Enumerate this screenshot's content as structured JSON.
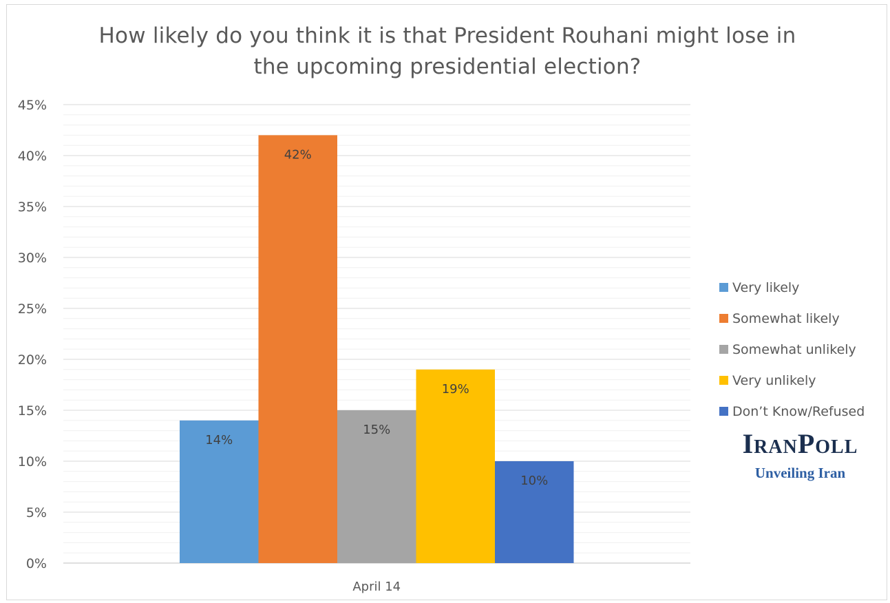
{
  "chart_data": {
    "type": "bar",
    "title_lines": [
      "How likely do you think it is that President Rouhani might lose in",
      "the upcoming presidential election?"
    ],
    "categories": [
      "April 14"
    ],
    "series": [
      {
        "name": "Very likely",
        "values": [
          14
        ],
        "label": "14%",
        "color": "#5b9bd5"
      },
      {
        "name": "Somewhat likely",
        "values": [
          42
        ],
        "label": "42%",
        "color": "#ed7d31"
      },
      {
        "name": "Somewhat unlikely",
        "values": [
          15
        ],
        "label": "15%",
        "color": "#a5a5a5"
      },
      {
        "name": "Very unlikely",
        "values": [
          19
        ],
        "label": "19%",
        "color": "#ffc000"
      },
      {
        "name": "Don’t Know/Refused",
        "values": [
          10
        ],
        "label": "10%",
        "color": "#4472c4"
      }
    ],
    "ylim": [
      0,
      45
    ],
    "yticks": [
      "0%",
      "5%",
      "10%",
      "15%",
      "20%",
      "25%",
      "30%",
      "35%",
      "40%",
      "45%"
    ],
    "grid": true,
    "legend": "right"
  },
  "logo": {
    "main": "IranPoll",
    "sub": "Unveiling Iran"
  }
}
